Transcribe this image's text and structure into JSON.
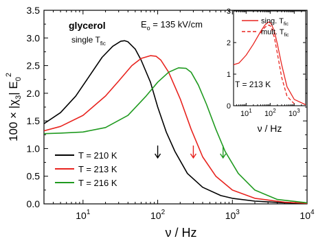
{
  "chart_data": [
    {
      "type": "line",
      "x_scale": "log",
      "xlim": [
        3,
        10000
      ],
      "ylim": [
        0,
        3.5
      ],
      "xlabel": "ν / Hz",
      "ylabel": "100 × |χ3| E0²",
      "ylabel_parts": {
        "prefix": "100 × |χ",
        "sub": "3",
        "mid": "| E",
        "sub2": "0",
        "sup": "2"
      },
      "x_ticks": [
        {
          "value": 10,
          "base": "10",
          "exp": "1"
        },
        {
          "value": 100,
          "base": "10",
          "exp": "2"
        },
        {
          "value": 1000,
          "base": "10",
          "exp": "3"
        },
        {
          "value": 10000,
          "base": "10",
          "exp": "4"
        }
      ],
      "y_ticks": [
        "0.0",
        "0.5",
        "1.0",
        "1.5",
        "2.0",
        "2.5",
        "3.0",
        "3.5"
      ],
      "grid": false,
      "legend_position": "bottom-left",
      "annotations": {
        "title": "glycerol",
        "subtitle": {
          "text": "single T",
          "sub": "fic"
        },
        "field": {
          "prefix": "E",
          "sub": "o",
          "text": " = 135 kV/cm"
        }
      },
      "series": [
        {
          "name": "T = 210 K",
          "color": "#000000",
          "arrow_x": 100,
          "x": [
            3,
            5,
            8,
            12,
            18,
            25,
            32,
            36,
            40,
            50,
            60,
            80,
            100,
            130,
            170,
            250,
            400,
            700,
            1000,
            2000,
            5000,
            10000
          ],
          "y": [
            1.45,
            1.65,
            1.95,
            2.3,
            2.65,
            2.85,
            2.94,
            2.95,
            2.93,
            2.8,
            2.6,
            2.2,
            1.75,
            1.3,
            0.95,
            0.55,
            0.3,
            0.15,
            0.1,
            0.05,
            0.02,
            0.01
          ]
        },
        {
          "name": "T = 213 K",
          "color": "#e8231e",
          "arrow_x": 300,
          "x": [
            3,
            5,
            10,
            20,
            30,
            45,
            60,
            80,
            95,
            110,
            140,
            200,
            280,
            400,
            600,
            1000,
            2000,
            5000,
            10000
          ],
          "y": [
            1.32,
            1.4,
            1.6,
            1.95,
            2.22,
            2.5,
            2.63,
            2.68,
            2.67,
            2.6,
            2.38,
            1.9,
            1.35,
            0.85,
            0.5,
            0.25,
            0.1,
            0.03,
            0.01
          ]
        },
        {
          "name": "T = 216 K",
          "color": "#1f9a1f",
          "arrow_x": 750,
          "x": [
            3,
            5,
            10,
            20,
            40,
            70,
            100,
            140,
            190,
            240,
            280,
            350,
            450,
            600,
            800,
            1200,
            2000,
            4000,
            10000
          ],
          "y": [
            1.27,
            1.28,
            1.3,
            1.38,
            1.6,
            1.95,
            2.2,
            2.38,
            2.46,
            2.45,
            2.38,
            2.15,
            1.8,
            1.35,
            0.95,
            0.55,
            0.25,
            0.08,
            0.02
          ]
        }
      ]
    },
    {
      "type": "line",
      "x_scale": "log",
      "xlim": [
        3,
        3000
      ],
      "ylim": [
        0,
        3
      ],
      "xlabel": "ν / Hz",
      "x_ticks": [
        {
          "value": 10,
          "base": "10",
          "exp": "1"
        },
        {
          "value": 100,
          "base": "10",
          "exp": "2"
        },
        {
          "value": 1000,
          "base": "10",
          "exp": "3"
        }
      ],
      "y_ticks": [
        "0",
        "1",
        "2",
        "3"
      ],
      "legend_position": "top-right",
      "annotation": "T = 213 K",
      "series": [
        {
          "name": "sing. T",
          "name_sub": "fic",
          "color": "#e8231e",
          "dash": "solid",
          "x": [
            3,
            5,
            10,
            20,
            40,
            60,
            80,
            95,
            110,
            150,
            200,
            300,
            500,
            1000,
            3000
          ],
          "y": [
            1.3,
            1.35,
            1.6,
            1.95,
            2.35,
            2.55,
            2.64,
            2.65,
            2.6,
            2.35,
            1.95,
            1.3,
            0.6,
            0.2,
            0.03
          ]
        },
        {
          "name": "mult. T",
          "name_sub": "fic",
          "color": "#e8231e",
          "dash": "dashed",
          "x": [
            40,
            60,
            80,
            95,
            110,
            150,
            200,
            300,
            500,
            1000
          ],
          "y": [
            2.3,
            2.48,
            2.55,
            2.55,
            2.48,
            2.15,
            1.65,
            0.9,
            0.3,
            0.06
          ]
        }
      ]
    }
  ]
}
